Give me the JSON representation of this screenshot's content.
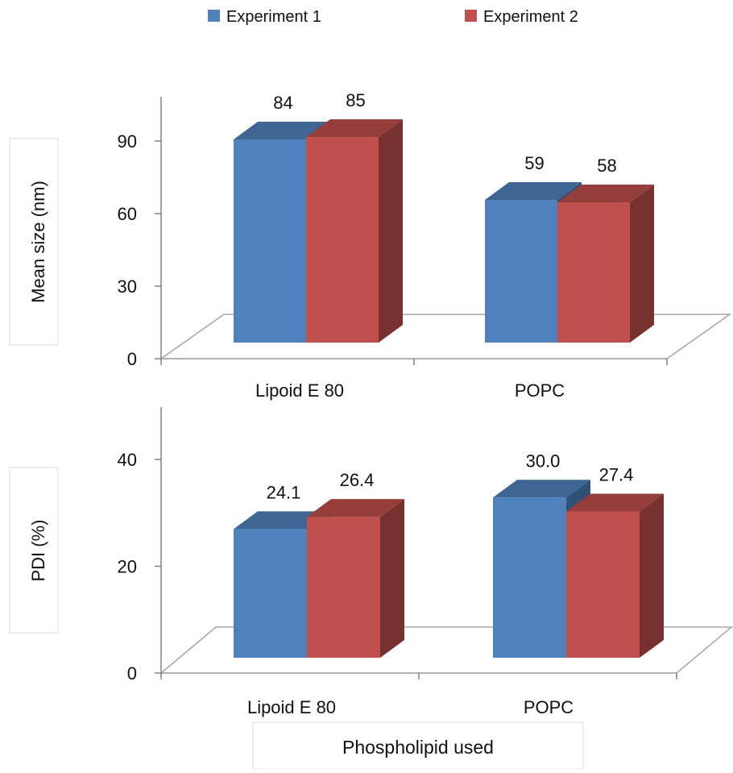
{
  "legend": {
    "items": [
      {
        "label": "Experiment 1",
        "color": "#4f81bd"
      },
      {
        "label": "Experiment 2",
        "color": "#c0504d"
      }
    ]
  },
  "shared_xlabel": "Phospholipid used",
  "chart_data": [
    {
      "type": "bar",
      "categories": [
        "Lipoid E 80",
        "POPC"
      ],
      "series": [
        {
          "name": "Experiment 1",
          "values": [
            84,
            59
          ],
          "labels": [
            "84",
            "59"
          ]
        },
        {
          "name": "Experiment 2",
          "values": [
            85,
            58
          ],
          "labels": [
            "85",
            "58"
          ]
        }
      ],
      "ylabel": "Mean size (nm)",
      "yticks": [
        0,
        30,
        60,
        90
      ],
      "ylim": [
        0,
        90
      ],
      "grid": false,
      "style": "3d"
    },
    {
      "type": "bar",
      "categories": [
        "Lipoid E 80",
        "POPC"
      ],
      "series": [
        {
          "name": "Experiment 1",
          "values": [
            24.1,
            30.0
          ],
          "labels": [
            "24.1",
            "30.0"
          ]
        },
        {
          "name": "Experiment 2",
          "values": [
            26.4,
            27.4
          ],
          "labels": [
            "26.4",
            "27.4"
          ]
        }
      ],
      "ylabel": "PDI (%)",
      "yticks": [
        0,
        20,
        40
      ],
      "ylim": [
        0,
        40
      ],
      "grid": false,
      "style": "3d"
    }
  ]
}
